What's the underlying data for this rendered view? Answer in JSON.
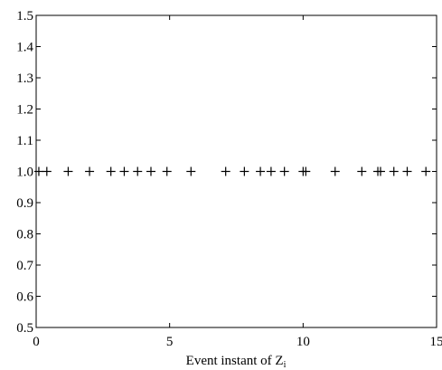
{
  "chart_data": {
    "type": "scatter",
    "title": "",
    "xlabel": "Event instant of Z",
    "xlabel_subscript": "i",
    "ylabel": "",
    "xlim": [
      0,
      15
    ],
    "ylim": [
      0.5,
      1.5
    ],
    "xticks": [
      0,
      5,
      10,
      15
    ],
    "xtick_labels": [
      "0",
      "5",
      "10",
      "15"
    ],
    "yticks": [
      0.5,
      0.6,
      0.7,
      0.8,
      0.9,
      1.0,
      1.1,
      1.2,
      1.3,
      1.4,
      1.5
    ],
    "ytick_labels": [
      "0.5",
      "0.6",
      "0.7",
      "0.8",
      "0.9",
      "1.0",
      "1.1",
      "1.2",
      "1.3",
      "1.4",
      "1.5"
    ],
    "grid": false,
    "marker": "+",
    "marker_color": "#000000",
    "series": [
      {
        "x": [
          0.1,
          0.4,
          1.2,
          2.0,
          2.8,
          3.3,
          3.8,
          4.3,
          4.9,
          5.8,
          7.1,
          7.8,
          8.4,
          8.8,
          9.3,
          10.0,
          10.1,
          11.2,
          12.2,
          12.8,
          12.9,
          13.4,
          13.9,
          14.6
        ],
        "y": [
          1.0,
          1.0,
          1.0,
          1.0,
          1.0,
          1.0,
          1.0,
          1.0,
          1.0,
          1.0,
          1.0,
          1.0,
          1.0,
          1.0,
          1.0,
          1.0,
          1.0,
          1.0,
          1.0,
          1.0,
          1.0,
          1.0,
          1.0,
          1.0
        ]
      }
    ]
  }
}
